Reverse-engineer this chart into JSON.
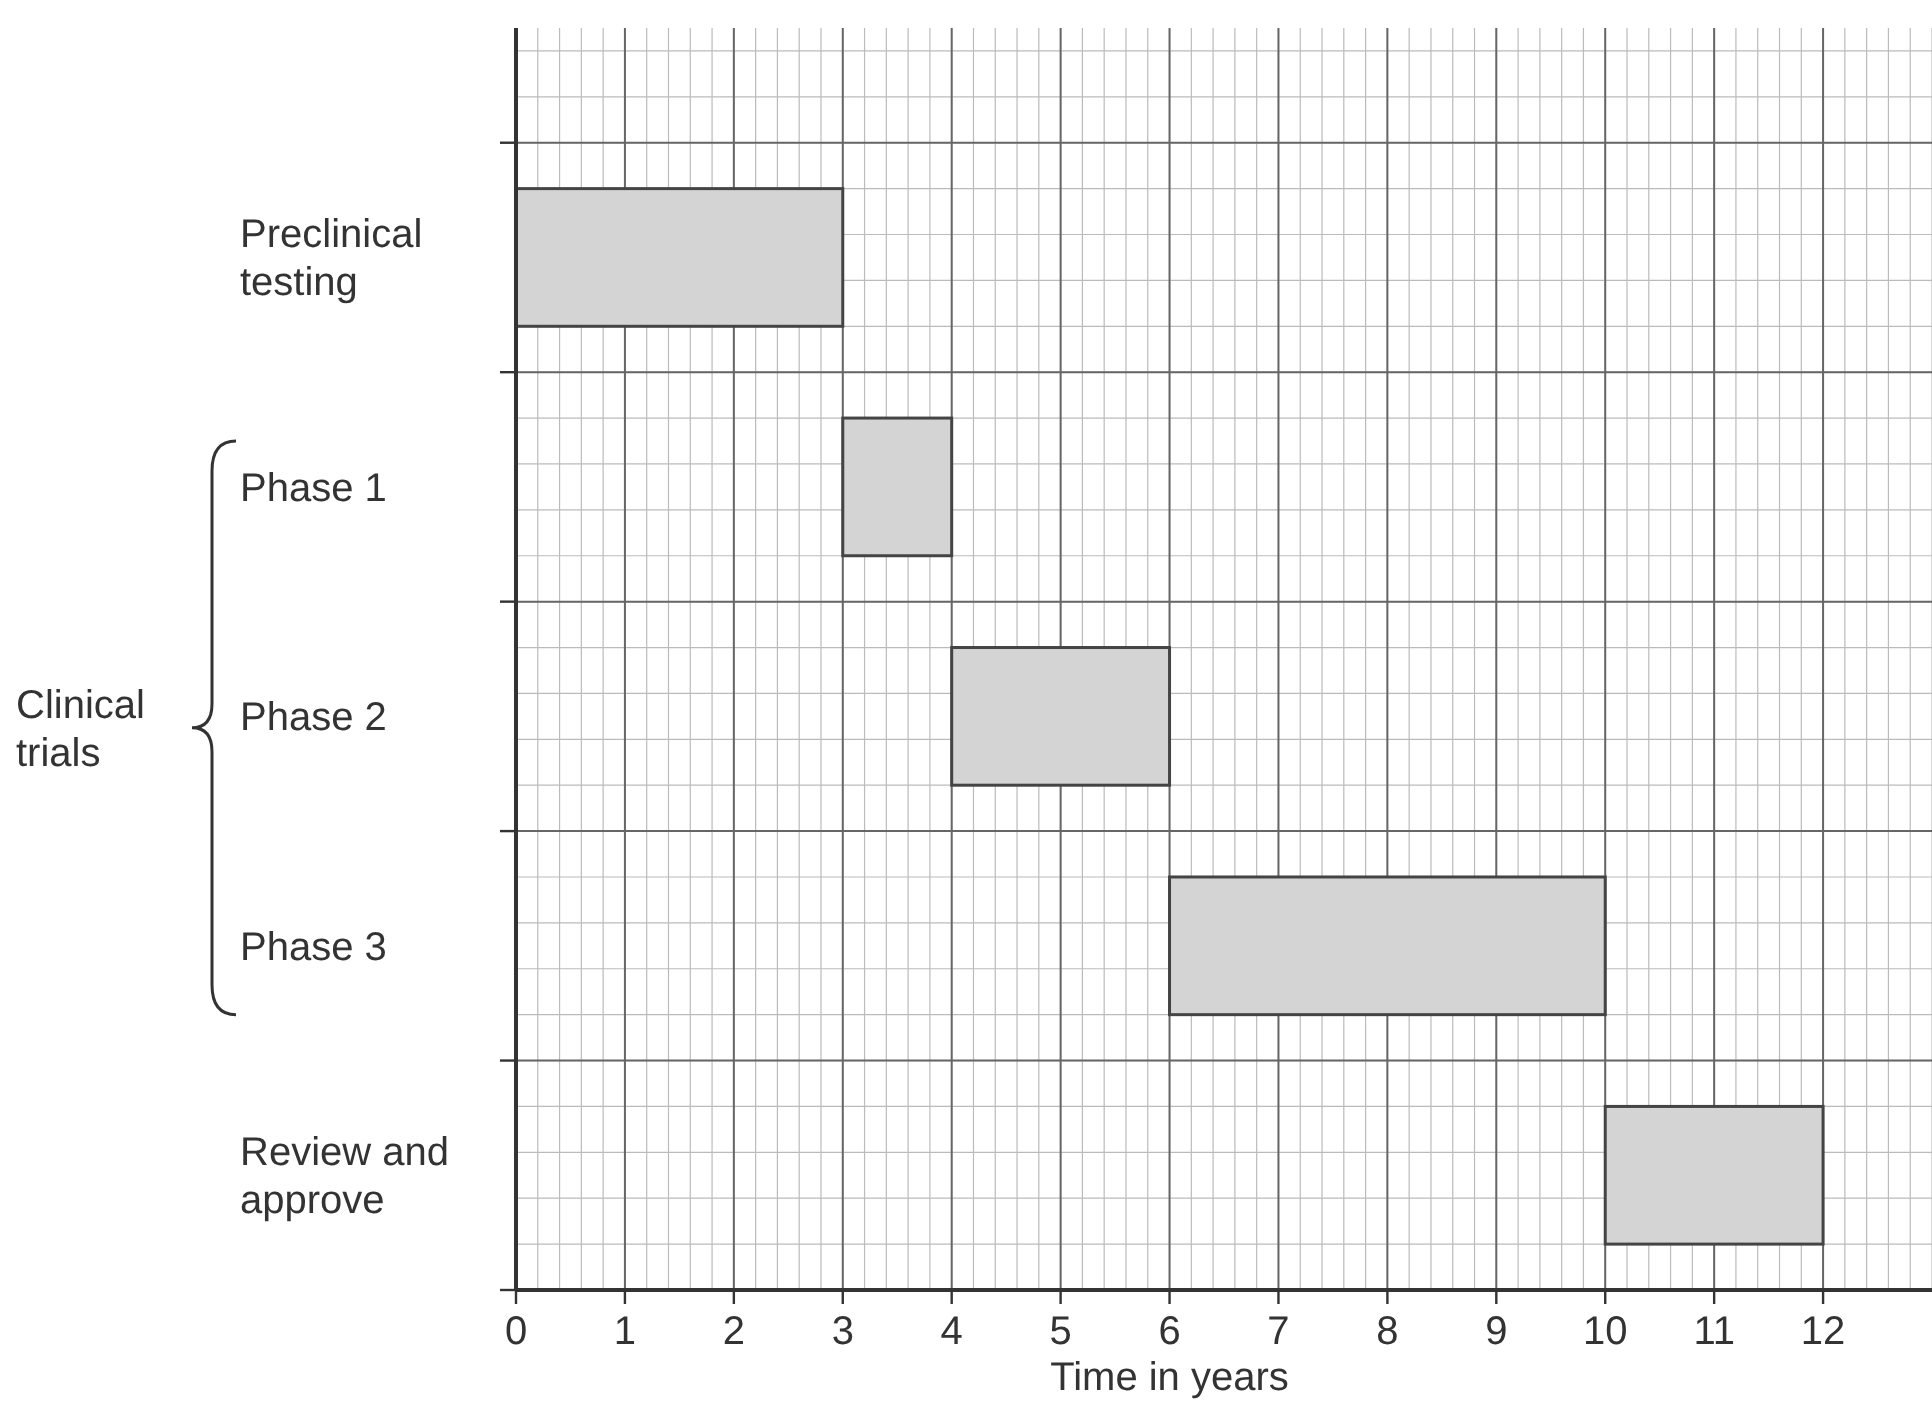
{
  "chart_data": {
    "type": "bar",
    "orientation": "horizontal",
    "categories": [
      "Preclinical testing",
      "Phase 1",
      "Phase 2",
      "Phase 3",
      "Review and approve"
    ],
    "base": [
      0,
      3,
      4,
      6,
      10
    ],
    "values": [
      3,
      1,
      2,
      4,
      2
    ],
    "color": "#d4d4d4",
    "xlabel": "Time in years",
    "xlim": [
      0,
      13
    ],
    "xticks": [
      0,
      1,
      2,
      3,
      4,
      5,
      6,
      7,
      8,
      9,
      10,
      11,
      12
    ],
    "grid": true,
    "annotations": [
      "Clinical trials"
    ]
  }
}
